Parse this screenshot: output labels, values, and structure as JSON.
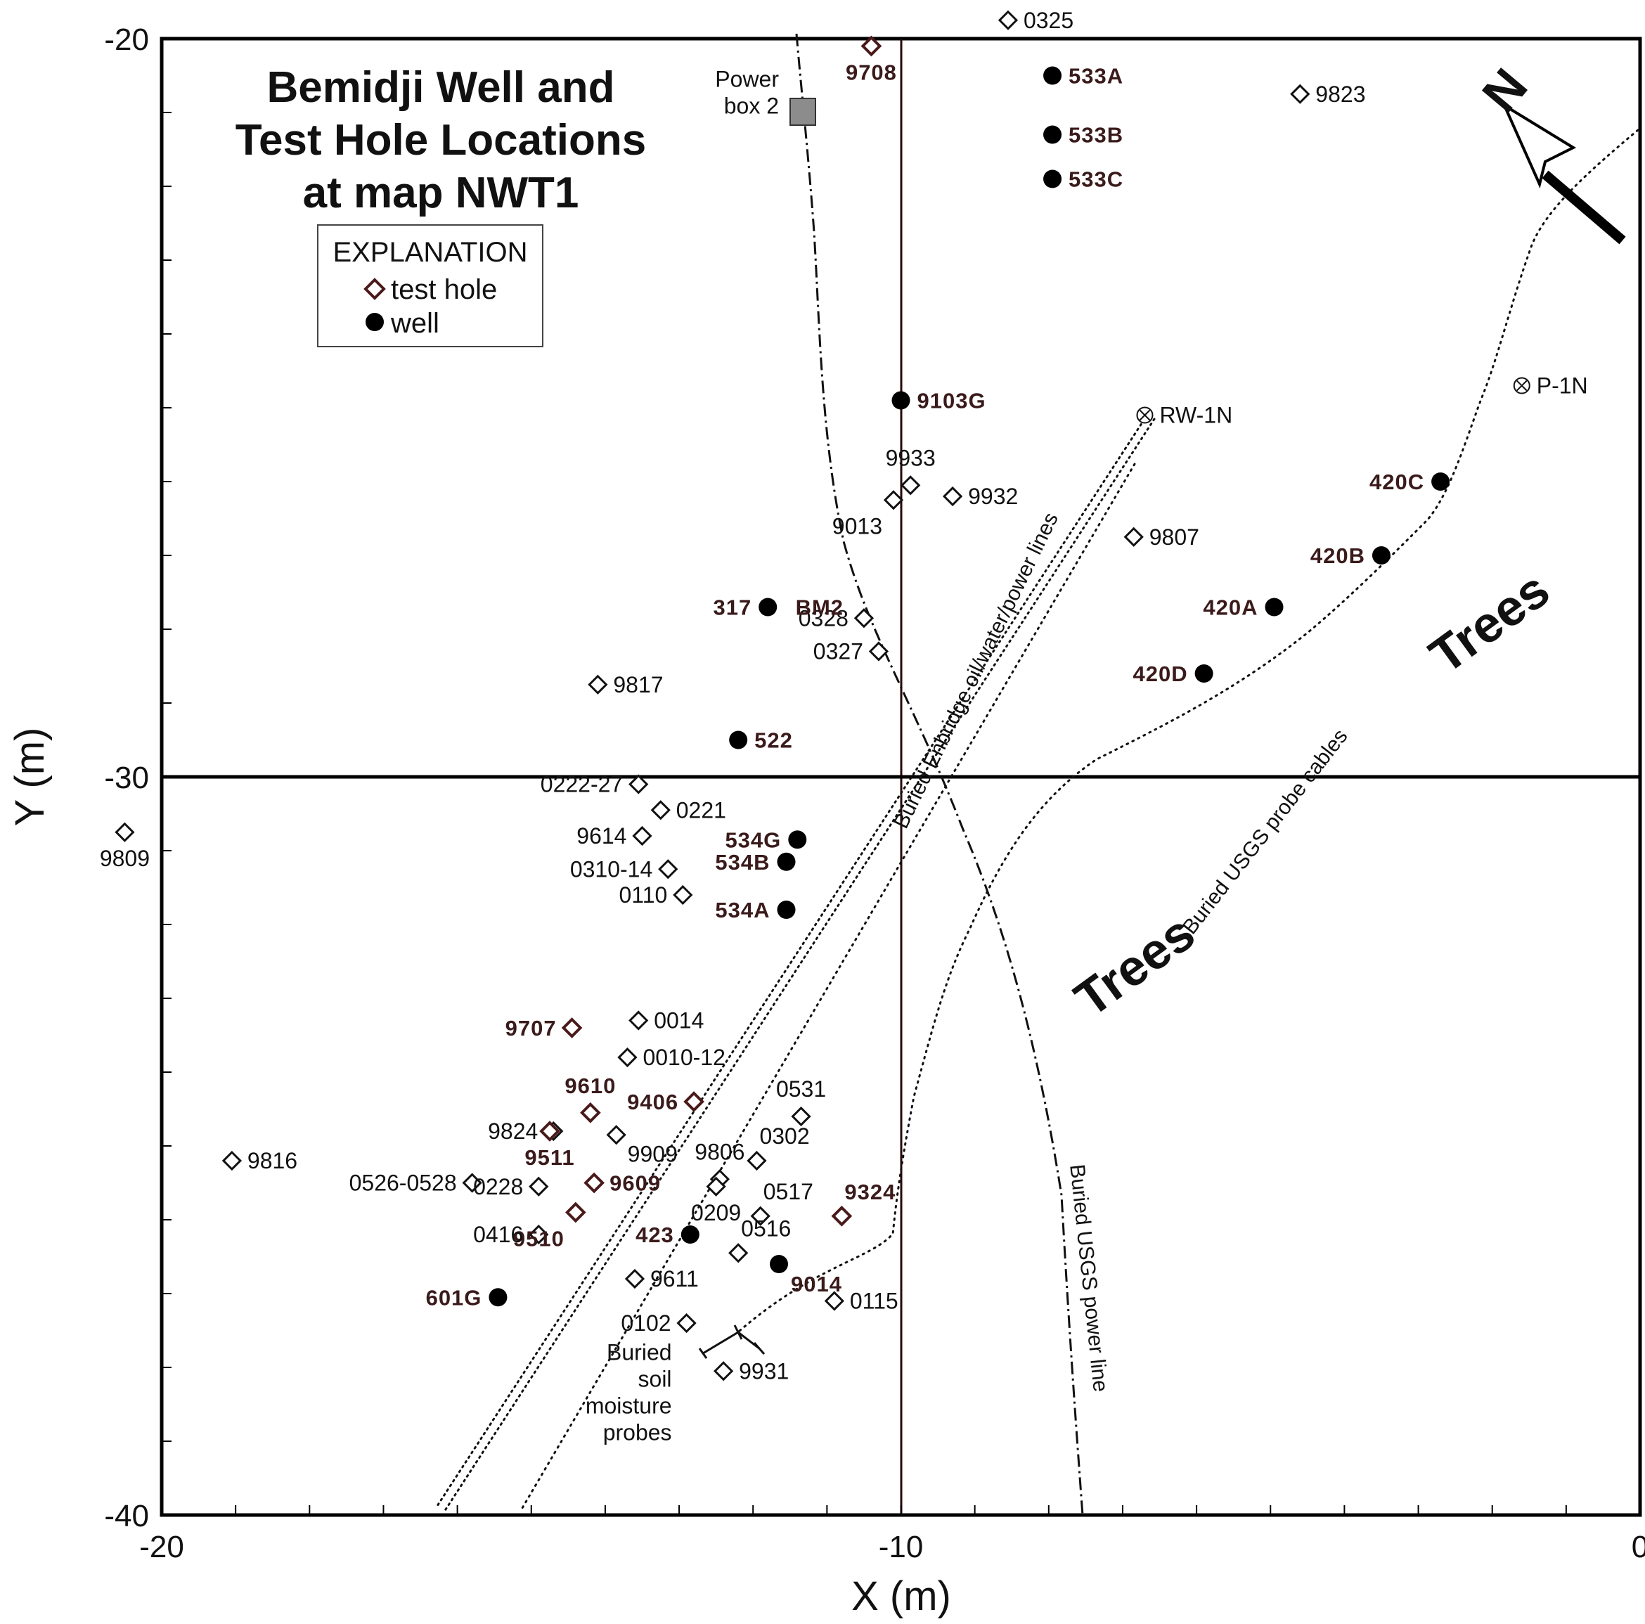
{
  "chart_data": {
    "type": "scatter",
    "title": [
      "Bemidji Well and",
      "Test Hole Locations",
      "at map NWT1"
    ],
    "xlabel": "X (m)",
    "ylabel": "Y (m)",
    "xlim": [
      -20,
      0
    ],
    "ylim": [
      -40,
      -20
    ],
    "x_ticks": [
      {
        "v": -20,
        "label": "-20"
      },
      {
        "v": -10,
        "label": "-10"
      },
      {
        "v": 0,
        "label": "0"
      }
    ],
    "y_ticks": [
      {
        "v": -20,
        "label": "-20"
      },
      {
        "v": -30,
        "label": "-30"
      },
      {
        "v": -40,
        "label": "-40"
      }
    ],
    "grid": "cross lines at x=-10 and y=-30",
    "legend": {
      "title": "EXPLANATION",
      "placement": "top-left",
      "items": [
        {
          "symbol": "diamond",
          "label": "test hole"
        },
        {
          "symbol": "circle",
          "label": "well"
        }
      ]
    },
    "test_holes": [
      {
        "x": -8.55,
        "y": -19.75,
        "label": "0325",
        "bold": false,
        "pos": "right"
      },
      {
        "x": -10.4,
        "y": -20.1,
        "label": "9708",
        "bold": true,
        "pos": "below"
      },
      {
        "x": -4.6,
        "y": -20.75,
        "label": "9823",
        "bold": false,
        "pos": "right"
      },
      {
        "x": -9.87,
        "y": -26.05,
        "label": "9933",
        "bold": false,
        "pos": "above"
      },
      {
        "x": -10.1,
        "y": -26.25,
        "label": "9013",
        "bold": false,
        "pos": "belowleft"
      },
      {
        "x": -9.3,
        "y": -26.2,
        "label": "9932",
        "bold": false,
        "pos": "right"
      },
      {
        "x": -6.85,
        "y": -26.75,
        "label": "9807",
        "bold": false,
        "pos": "right"
      },
      {
        "x": -10.5,
        "y": -27.85,
        "label": "0328",
        "bold": false,
        "pos": "left"
      },
      {
        "x": -10.3,
        "y": -28.3,
        "label": "0327",
        "bold": false,
        "pos": "left"
      },
      {
        "x": -14.1,
        "y": -28.75,
        "label": "9817",
        "bold": false,
        "pos": "right"
      },
      {
        "x": -20.5,
        "y": -30.75,
        "label": "9809",
        "bold": false,
        "pos": "below"
      },
      {
        "x": -13.55,
        "y": -30.1,
        "label": "0222-27",
        "bold": false,
        "pos": "left"
      },
      {
        "x": -13.25,
        "y": -30.45,
        "label": "0221",
        "bold": false,
        "pos": "right"
      },
      {
        "x": -13.5,
        "y": -30.8,
        "label": "9614",
        "bold": false,
        "pos": "left"
      },
      {
        "x": -13.15,
        "y": -31.25,
        "label": "0310-14",
        "bold": false,
        "pos": "left"
      },
      {
        "x": -12.95,
        "y": -31.6,
        "label": "0110",
        "bold": false,
        "pos": "left"
      },
      {
        "x": -13.55,
        "y": -33.3,
        "label": "0014",
        "bold": false,
        "pos": "right"
      },
      {
        "x": -14.45,
        "y": -33.4,
        "label": "9707",
        "bold": true,
        "pos": "left"
      },
      {
        "x": -13.7,
        "y": -33.8,
        "label": "0010-12",
        "bold": false,
        "pos": "right"
      },
      {
        "x": -12.8,
        "y": -34.4,
        "label": "9406",
        "bold": true,
        "pos": "left"
      },
      {
        "x": -14.2,
        "y": -34.55,
        "label": "9610",
        "bold": true,
        "pos": "above"
      },
      {
        "x": -11.35,
        "y": -34.6,
        "label": "0531",
        "bold": false,
        "pos": "above"
      },
      {
        "x": -14.7,
        "y": -34.8,
        "label": "9824",
        "bold": false,
        "pos": "left"
      },
      {
        "x": -14.75,
        "y": -34.8,
        "label": "9511",
        "bold": true,
        "pos": "below"
      },
      {
        "x": -13.85,
        "y": -34.85,
        "label": "9909",
        "bold": false,
        "pos": "belowright"
      },
      {
        "x": -11.95,
        "y": -35.2,
        "label": "0302",
        "bold": false,
        "pos": "aboveright"
      },
      {
        "x": -12.45,
        "y": -35.45,
        "label": "9806",
        "bold": false,
        "pos": "above"
      },
      {
        "x": -19.05,
        "y": -35.2,
        "label": "9816",
        "bold": false,
        "pos": "right"
      },
      {
        "x": -15.8,
        "y": -35.5,
        "label": "0526-0528",
        "bold": false,
        "pos": "left"
      },
      {
        "x": -14.9,
        "y": -35.55,
        "label": "0228",
        "bold": false,
        "pos": "left"
      },
      {
        "x": -14.15,
        "y": -35.5,
        "label": "9609",
        "bold": true,
        "pos": "right"
      },
      {
        "x": -12.5,
        "y": -35.55,
        "label": "0209",
        "bold": false,
        "pos": "below"
      },
      {
        "x": -11.9,
        "y": -35.95,
        "label": "0517",
        "bold": false,
        "pos": "aboveright"
      },
      {
        "x": -10.8,
        "y": -35.95,
        "label": "9324",
        "bold": true,
        "pos": "aboveright"
      },
      {
        "x": -14.4,
        "y": -35.9,
        "label": "9510",
        "bold": true,
        "pos": "belowleft"
      },
      {
        "x": -14.9,
        "y": -36.2,
        "label": "0416",
        "bold": false,
        "pos": "left"
      },
      {
        "x": -12.2,
        "y": -36.45,
        "label": "0516",
        "bold": false,
        "pos": "aboveright"
      },
      {
        "x": -13.6,
        "y": -36.8,
        "label": "9611",
        "bold": false,
        "pos": "right"
      },
      {
        "x": -10.9,
        "y": -37.1,
        "label": "0115",
        "bold": false,
        "pos": "right"
      },
      {
        "x": -12.9,
        "y": -37.4,
        "label": "0102",
        "bold": false,
        "pos": "left"
      },
      {
        "x": -12.4,
        "y": -38.05,
        "label": "9931",
        "bold": false,
        "pos": "right"
      }
    ],
    "wells": [
      {
        "x": -7.95,
        "y": -20.5,
        "label": "533A",
        "pos": "right"
      },
      {
        "x": -7.95,
        "y": -21.3,
        "label": "533B",
        "pos": "right"
      },
      {
        "x": -7.95,
        "y": -21.9,
        "label": "533C",
        "pos": "right"
      },
      {
        "x": -10.0,
        "y": -24.9,
        "label": "9103G",
        "pos": "right"
      },
      {
        "x": -2.7,
        "y": -26.0,
        "label": "420C",
        "pos": "left"
      },
      {
        "x": -3.5,
        "y": -27.0,
        "label": "420B",
        "pos": "left"
      },
      {
        "x": -4.95,
        "y": -27.7,
        "label": "420A",
        "pos": "left"
      },
      {
        "x": -5.9,
        "y": -28.6,
        "label": "420D",
        "pos": "left"
      },
      {
        "x": -11.8,
        "y": -27.7,
        "label": "317",
        "pos": "left"
      },
      {
        "x": -12.2,
        "y": -29.5,
        "label": "522",
        "pos": "right"
      },
      {
        "x": -11.4,
        "y": -30.85,
        "label": "534G",
        "pos": "left"
      },
      {
        "x": -11.55,
        "y": -31.15,
        "label": "534B",
        "pos": "left"
      },
      {
        "x": -11.55,
        "y": -31.8,
        "label": "534A",
        "pos": "left"
      },
      {
        "x": -12.85,
        "y": -36.2,
        "label": "423",
        "pos": "left"
      },
      {
        "x": -11.65,
        "y": -36.6,
        "label": "9014",
        "pos": "belowright"
      },
      {
        "x": -15.45,
        "y": -37.05,
        "label": "601G",
        "pos": "left"
      }
    ],
    "other_points": [
      {
        "x": -6.7,
        "y": -25.1,
        "label": "RW-1N",
        "pos": "right"
      },
      {
        "x": -1.6,
        "y": -24.7,
        "label": "P-1N",
        "pos": "right"
      }
    ],
    "annotations": [
      {
        "text": "BM2",
        "x": -11.1,
        "y": -27.7
      },
      {
        "text": [
          "Power",
          "box 2"
        ],
        "x": -11.65,
        "y": -20.65
      },
      {
        "text": [
          "Buried",
          "soil",
          "moisture",
          "probes"
        ],
        "x": -13.1,
        "y": -37.9
      },
      {
        "text": "Trees",
        "x": -1.9,
        "y": -28.1
      },
      {
        "text": "Trees",
        "x": -6.7,
        "y": -32.75
      },
      {
        "text": "N",
        "x": -1.65,
        "y": -20.85
      }
    ],
    "line_labels": [
      {
        "text": "Buried Enbridge oil/water/power lines",
        "x": -8.9,
        "y": -28.6,
        "angle": -64
      },
      {
        "text": "Buried USGS probe cables",
        "x": -5.0,
        "y": -30.8,
        "angle": -52
      },
      {
        "text": "Buried USGS power line",
        "x": -7.55,
        "y": -36.8,
        "angle": 84
      }
    ]
  }
}
